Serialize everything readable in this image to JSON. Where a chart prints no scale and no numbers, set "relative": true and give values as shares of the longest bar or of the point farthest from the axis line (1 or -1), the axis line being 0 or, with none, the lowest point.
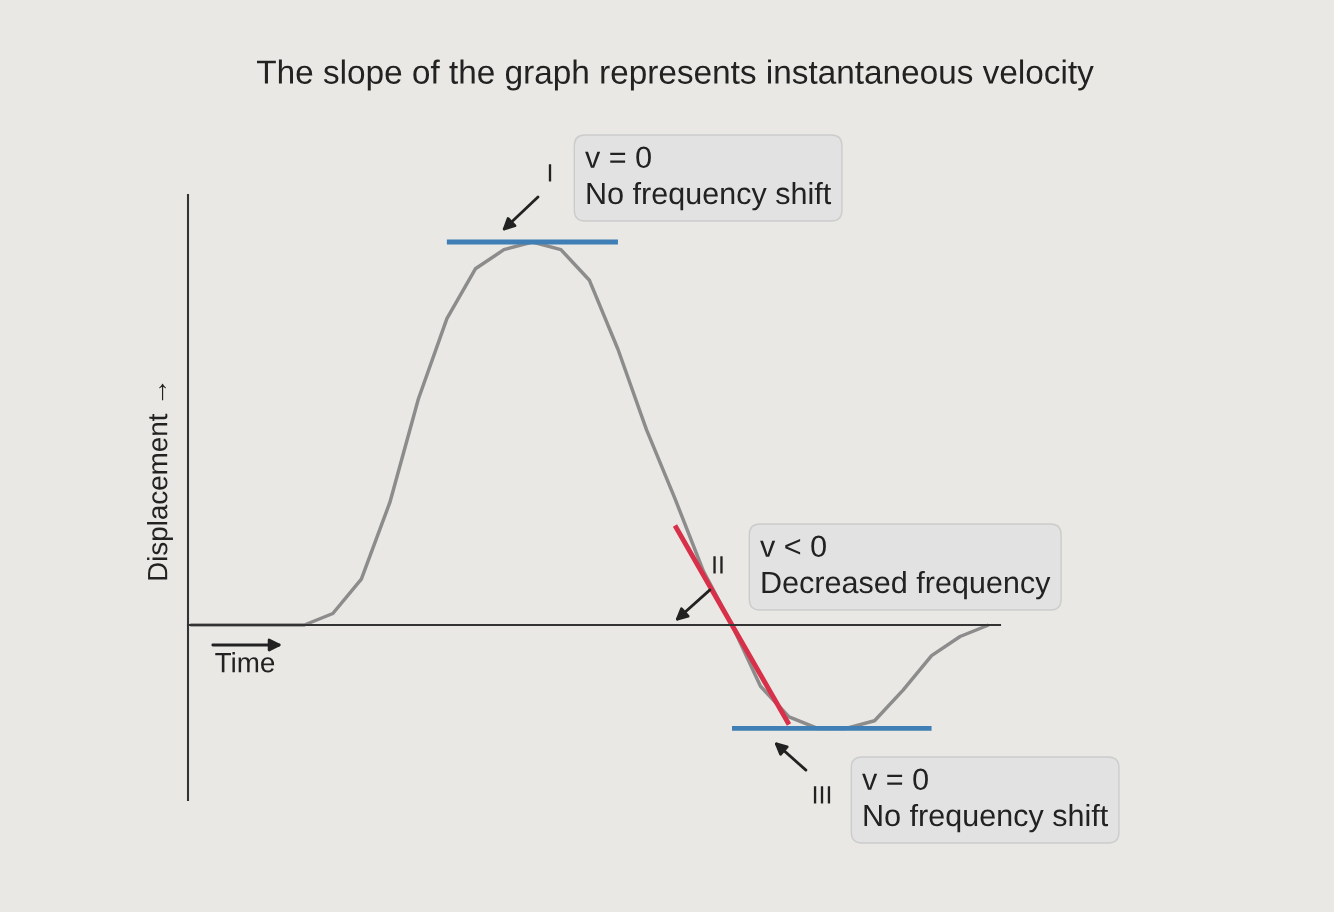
{
  "chart_data": {
    "type": "line",
    "relative": true,
    "title": "The slope of the graph represents instantaneous velocity",
    "xlabel": "Time",
    "ylabel": "Displacement →",
    "categories": [
      null,
      null,
      null,
      null,
      null,
      null,
      null,
      null,
      null,
      null,
      null,
      null,
      null,
      null,
      null,
      null,
      null,
      null,
      null,
      null,
      null,
      null,
      null,
      null,
      null,
      null,
      null,
      null,
      null
    ],
    "series": [
      {
        "color": "#8c8c8c",
        "values": [
          0,
          0,
          0,
          0,
          0,
          0.03,
          0.12,
          0.32,
          0.59,
          0.8,
          0.93,
          0.98,
          1,
          0.98,
          0.9,
          0.72,
          0.51,
          0.33,
          0.14,
          0,
          -0.16,
          -0.24,
          -0.27,
          -0.27,
          -0.25,
          -0.17,
          -0.08,
          -0.03,
          0
        ]
      },
      {
        "color": "#3f7fb5",
        "values": [
          null,
          null,
          null,
          null,
          null,
          null,
          null,
          null,
          null,
          1,
          1,
          1,
          1,
          1,
          1,
          1,
          null,
          null,
          null,
          null,
          null,
          null,
          null,
          null,
          null,
          null,
          null,
          null,
          null
        ]
      },
      {
        "color": "#d9304a",
        "values": [
          null,
          null,
          null,
          null,
          null,
          null,
          null,
          null,
          null,
          null,
          null,
          null,
          null,
          null,
          null,
          null,
          null,
          0.26,
          0.13,
          0,
          -0.13,
          -0.26,
          null,
          null,
          null,
          null,
          null,
          null,
          null
        ]
      },
      {
        "color": "#3f7fb5",
        "values": [
          null,
          null,
          null,
          null,
          null,
          null,
          null,
          null,
          null,
          null,
          null,
          null,
          null,
          null,
          null,
          null,
          null,
          null,
          null,
          -0.27,
          -0.27,
          -0.27,
          -0.27,
          -0.27,
          -0.27,
          -0.27,
          -0.27,
          null,
          null
        ]
      }
    ],
    "annotations": [
      "I",
      "v = 0\nNo frequency shift",
      "II",
      "v < 0\nDecreased frequency",
      "III",
      "v = 0\nNo frequency shift"
    ]
  }
}
